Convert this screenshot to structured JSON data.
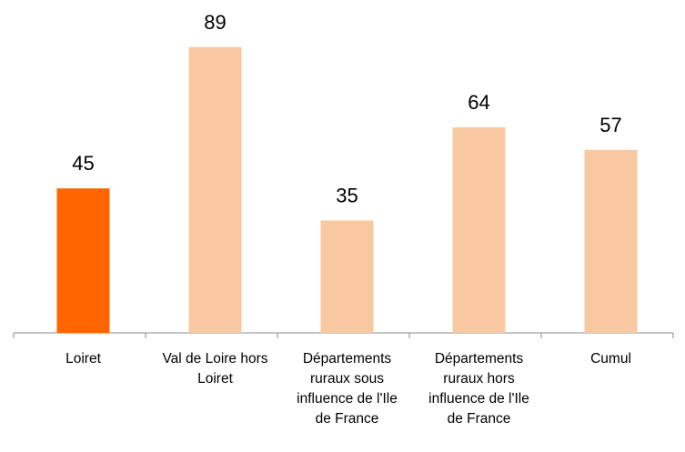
{
  "chart_data": {
    "type": "bar",
    "categories": [
      "Loiret",
      "Val de Loire hors Loiret",
      "Départements ruraux sous influence de l'Ile de France",
      "Départements ruraux hors influence de l'Ile de France",
      "Cumul"
    ],
    "values": [
      45,
      89,
      35,
      64,
      57
    ],
    "colors": [
      "#ff6600",
      "#f8c9a0",
      "#f8c9a0",
      "#f8c9a0",
      "#f8c9a0"
    ],
    "ylim": [
      0,
      100
    ]
  }
}
